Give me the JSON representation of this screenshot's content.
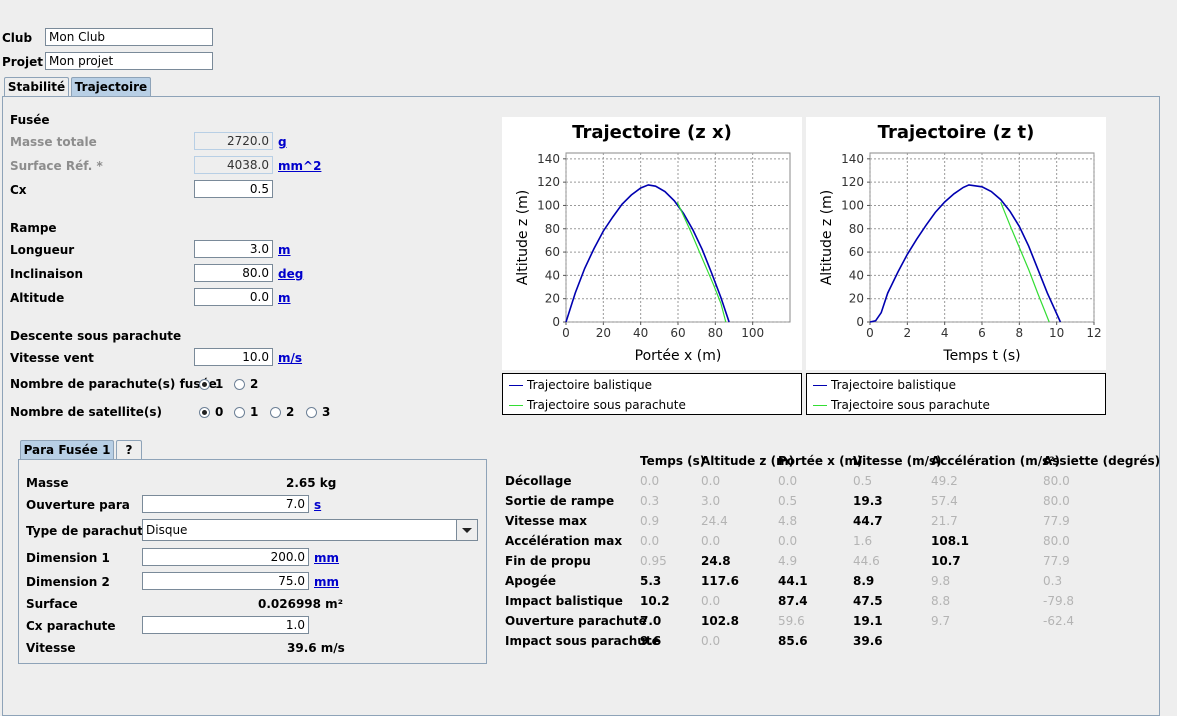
{
  "header": {
    "club_label": "Club",
    "club_value": "Mon Club",
    "projet_label": "Projet",
    "projet_value": "Mon projet"
  },
  "tabs": [
    {
      "label": "Stabilité",
      "selected": false
    },
    {
      "label": "Trajectoire",
      "selected": true
    }
  ],
  "main": {
    "fusee": {
      "title": "Fusée",
      "masse": {
        "label": "Masse totale",
        "value": "2720.0",
        "unit": "g"
      },
      "surface": {
        "label": "Surface Réf. *",
        "value": "4038.0",
        "unit": "mm^2"
      },
      "cx": {
        "label": "Cx",
        "value": "0.5"
      }
    },
    "rampe": {
      "title": "Rampe",
      "longueur": {
        "label": "Longueur",
        "value": "3.0",
        "unit": "m"
      },
      "inclinaison": {
        "label": "Inclinaison",
        "value": "80.0",
        "unit": "deg"
      },
      "altitude": {
        "label": "Altitude",
        "value": "0.0",
        "unit": "m"
      }
    },
    "descente": {
      "title": "Descente sous parachute",
      "vitesse_vent": {
        "label": "Vitesse vent",
        "value": "10.0",
        "unit": "m/s"
      },
      "nb_parachutes": {
        "label": "Nombre de parachute(s) fusée",
        "options": [
          "1",
          "2"
        ],
        "selected": "1"
      },
      "nb_satellites": {
        "label": "Nombre de satellite(s)",
        "options": [
          "0",
          "1",
          "2",
          "3"
        ],
        "selected": "0"
      }
    }
  },
  "para_tabs": [
    {
      "label": "Para Fusée 1",
      "selected": true
    },
    {
      "label": "?",
      "selected": false
    }
  ],
  "para": {
    "masse": {
      "label": "Masse",
      "value": "2.65 kg"
    },
    "ouverture": {
      "label": "Ouverture para",
      "value": "7.0",
      "unit": "s"
    },
    "type": {
      "label": "Type de parachute",
      "value": "Disque"
    },
    "dim1": {
      "label": "Dimension 1",
      "value": "200.0",
      "unit": "mm"
    },
    "dim2": {
      "label": "Dimension 2",
      "value": "75.0",
      "unit": "mm"
    },
    "surface": {
      "label": "Surface",
      "value": "0.026998 m²"
    },
    "cx": {
      "label": "Cx parachute",
      "value": "1.0"
    },
    "vitesse": {
      "label": "Vitesse",
      "value": "39.6 m/s"
    }
  },
  "colors": {
    "balistique": "#0000b0",
    "parachute": "#33dd33"
  },
  "chart_data": [
    {
      "type": "line",
      "title": "Trajectoire (z x)",
      "xlabel": "Portée x (m)",
      "ylabel": "Altitude z (m)",
      "xlim": [
        0,
        120
      ],
      "ylim": [
        0,
        145
      ],
      "xticks": [
        0,
        20,
        40,
        60,
        80,
        100
      ],
      "yticks": [
        0,
        20,
        40,
        60,
        80,
        100,
        120,
        140
      ],
      "grid": true,
      "series": [
        {
          "name": "Trajectoire balistique",
          "x": [
            0,
            5,
            10,
            15,
            20,
            25,
            30,
            35,
            40,
            44.1,
            48,
            53,
            58,
            63,
            68,
            73,
            78,
            83,
            87.4
          ],
          "y": [
            0,
            25,
            46,
            63,
            78,
            90,
            101,
            109,
            115,
            117.6,
            116.5,
            112,
            104,
            93,
            79,
            62,
            42,
            21,
            0
          ]
        },
        {
          "name": "Trajectoire sous parachute",
          "x": [
            59.6,
            63,
            67,
            71,
            75,
            79,
            83,
            85.6
          ],
          "y": [
            102.8,
            91,
            77,
            62,
            47,
            32,
            16,
            0
          ]
        }
      ]
    },
    {
      "type": "line",
      "title": "Trajectoire (z t)",
      "xlabel": "Temps t (s)",
      "ylabel": "Altitude z (m)",
      "xlim": [
        0,
        12
      ],
      "ylim": [
        0,
        145
      ],
      "xticks": [
        0,
        2,
        4,
        6,
        8,
        10,
        12
      ],
      "yticks": [
        0,
        20,
        40,
        60,
        80,
        100,
        120,
        140
      ],
      "grid": true,
      "series": [
        {
          "name": "Trajectoire balistique",
          "x": [
            0,
            0.3,
            0.6,
            0.95,
            1.5,
            2,
            2.5,
            3,
            3.5,
            4,
            4.5,
            5,
            5.3,
            6,
            6.5,
            7,
            7.5,
            8,
            8.5,
            9,
            9.5,
            10.2
          ],
          "y": [
            0,
            1,
            8,
            24.8,
            43,
            58,
            71,
            83,
            94,
            103,
            110,
            115.5,
            117.6,
            116,
            112,
            105,
            95,
            82,
            65,
            45,
            25,
            0
          ]
        },
        {
          "name": "Trajectoire sous parachute",
          "x": [
            7,
            7.5,
            8,
            8.5,
            9,
            9.6
          ],
          "y": [
            102.8,
            83,
            64,
            45,
            24,
            0
          ]
        }
      ]
    }
  ],
  "results": {
    "headers": [
      "Temps (s)",
      "Altitude z (m)",
      "Portée x (m)",
      "Vitesse (m/s)",
      "Accélération (m/s²)",
      "Assiette (degrés)"
    ],
    "rows": [
      {
        "label": "Décollage",
        "cells": [
          {
            "v": "0.0",
            "hl": false
          },
          {
            "v": "0.0",
            "hl": false
          },
          {
            "v": "0.0",
            "hl": false
          },
          {
            "v": "0.5",
            "hl": false
          },
          {
            "v": "49.2",
            "hl": false
          },
          {
            "v": "80.0",
            "hl": false
          }
        ]
      },
      {
        "label": "Sortie de rampe",
        "cells": [
          {
            "v": "0.3",
            "hl": false
          },
          {
            "v": "3.0",
            "hl": false
          },
          {
            "v": "0.5",
            "hl": false
          },
          {
            "v": "19.3",
            "hl": true
          },
          {
            "v": "57.4",
            "hl": false
          },
          {
            "v": "80.0",
            "hl": false
          }
        ]
      },
      {
        "label": "Vitesse max",
        "cells": [
          {
            "v": "0.9",
            "hl": false
          },
          {
            "v": "24.4",
            "hl": false
          },
          {
            "v": "4.8",
            "hl": false
          },
          {
            "v": "44.7",
            "hl": true
          },
          {
            "v": "21.7",
            "hl": false
          },
          {
            "v": "77.9",
            "hl": false
          }
        ]
      },
      {
        "label": "Accélération max",
        "cells": [
          {
            "v": "0.0",
            "hl": false
          },
          {
            "v": "0.0",
            "hl": false
          },
          {
            "v": "0.0",
            "hl": false
          },
          {
            "v": "1.6",
            "hl": false
          },
          {
            "v": "108.1",
            "hl": true
          },
          {
            "v": "80.0",
            "hl": false
          }
        ]
      },
      {
        "label": "Fin de propu",
        "cells": [
          {
            "v": "0.95",
            "hl": false
          },
          {
            "v": "24.8",
            "hl": true
          },
          {
            "v": "4.9",
            "hl": false
          },
          {
            "v": "44.6",
            "hl": false
          },
          {
            "v": "10.7",
            "hl": true
          },
          {
            "v": "77.9",
            "hl": false
          }
        ]
      },
      {
        "label": "Apogée",
        "cells": [
          {
            "v": "5.3",
            "hl": true
          },
          {
            "v": "117.6",
            "hl": true
          },
          {
            "v": "44.1",
            "hl": true
          },
          {
            "v": "8.9",
            "hl": true
          },
          {
            "v": "9.8",
            "hl": false
          },
          {
            "v": "0.3",
            "hl": false
          }
        ]
      },
      {
        "label": "Impact balistique",
        "cells": [
          {
            "v": "10.2",
            "hl": true
          },
          {
            "v": "0.0",
            "hl": false
          },
          {
            "v": "87.4",
            "hl": true
          },
          {
            "v": "47.5",
            "hl": true
          },
          {
            "v": "8.8",
            "hl": false
          },
          {
            "v": "-79.8",
            "hl": false
          }
        ]
      },
      {
        "label": "Ouverture parachute",
        "cells": [
          {
            "v": "7.0",
            "hl": true
          },
          {
            "v": "102.8",
            "hl": true
          },
          {
            "v": "59.6",
            "hl": false
          },
          {
            "v": "19.1",
            "hl": true
          },
          {
            "v": "9.7",
            "hl": false
          },
          {
            "v": "-62.4",
            "hl": false
          }
        ]
      },
      {
        "label": "Impact sous parachute",
        "cells": [
          {
            "v": "9.6",
            "hl": true
          },
          {
            "v": "0.0",
            "hl": false
          },
          {
            "v": "85.6",
            "hl": true
          },
          {
            "v": "39.6",
            "hl": true
          },
          {
            "v": "",
            "hl": false
          },
          {
            "v": "",
            "hl": false
          }
        ]
      }
    ]
  }
}
